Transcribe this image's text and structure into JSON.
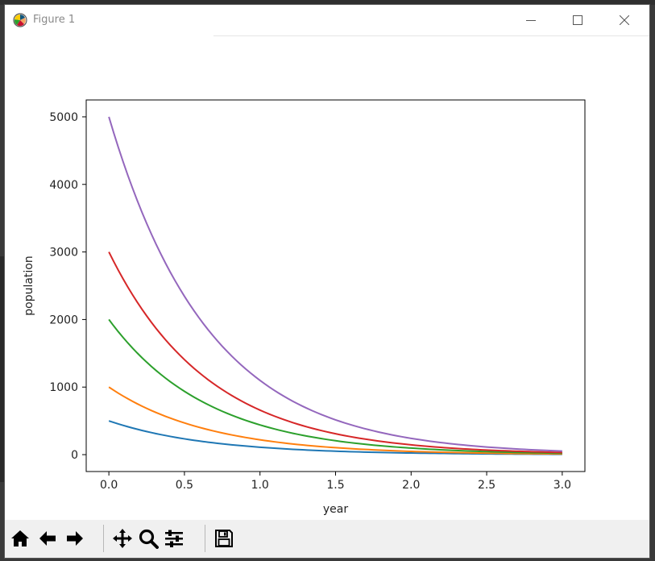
{
  "window": {
    "title": "Figure 1",
    "logo_icon": "matplotlib-logo-icon",
    "controls": [
      "minimize-icon",
      "maximize-icon",
      "close-icon"
    ]
  },
  "toolbar": {
    "buttons": [
      "home-icon",
      "back-arrow-icon",
      "forward-arrow-icon",
      "pan-icon",
      "zoom-icon",
      "configure-subplots-icon",
      "save-icon"
    ]
  },
  "chart_data": {
    "type": "line",
    "title": "",
    "xlabel": "year",
    "ylabel": "population",
    "xlim": [
      -0.15,
      3.15
    ],
    "ylim": [
      -250,
      5250
    ],
    "xticks": [
      0.0,
      0.5,
      1.0,
      1.5,
      2.0,
      2.5,
      3.0
    ],
    "xtick_labels": [
      "0.0",
      "0.5",
      "1.0",
      "1.5",
      "2.0",
      "2.5",
      "3.0"
    ],
    "yticks": [
      0,
      1000,
      2000,
      3000,
      4000,
      5000
    ],
    "ytick_labels": [
      "0",
      "1000",
      "2000",
      "3000",
      "4000",
      "5000"
    ],
    "grid": false,
    "x": [
      0.0,
      0.25,
      0.5,
      0.75,
      1.0,
      1.25,
      1.5,
      1.75,
      2.0,
      2.25,
      2.5,
      2.75,
      3.0
    ],
    "series": [
      {
        "color": "#1f77b4",
        "values": [
          500,
          342,
          234,
          160,
          110,
          75,
          51,
          35,
          24,
          17,
          11,
          8,
          5
        ]
      },
      {
        "color": "#ff7f0e",
        "values": [
          1000,
          685,
          469,
          321,
          220,
          150,
          103,
          71,
          48,
          33,
          23,
          15,
          11
        ]
      },
      {
        "color": "#2ca02c",
        "values": [
          2000,
          1369,
          937,
          642,
          440,
          301,
          206,
          141,
          97,
          66,
          45,
          31,
          21
        ]
      },
      {
        "color": "#d62728",
        "values": [
          3000,
          2054,
          1406,
          963,
          659,
          451,
          309,
          212,
          145,
          99,
          68,
          47,
          32
        ]
      },
      {
        "color": "#9467bd",
        "values": [
          5000,
          3423,
          2344,
          1605,
          1099,
          752,
          515,
          353,
          241,
          165,
          113,
          78,
          53
        ]
      }
    ]
  }
}
